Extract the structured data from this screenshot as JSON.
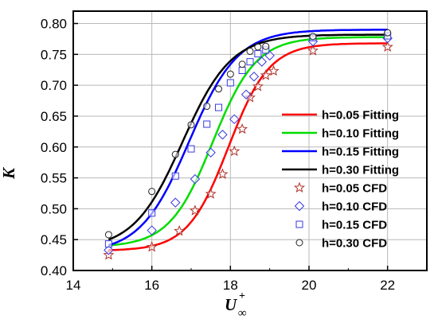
{
  "chart_data": {
    "type": "line",
    "title": "",
    "xlabel": "U",
    "xlabel_superscript": "+",
    "xlabel_subscript": "∞",
    "ylabel": "K",
    "xlim": [
      14,
      23
    ],
    "ylim": [
      0.4,
      0.82
    ],
    "xticks": [
      14,
      16,
      18,
      20,
      22
    ],
    "xtick_labels": [
      "14",
      "16",
      "18",
      "20",
      "22"
    ],
    "yticks": [
      0.4,
      0.45,
      0.5,
      0.55,
      0.6,
      0.65,
      0.7,
      0.75,
      0.8
    ],
    "ytick_labels": [
      "0.40",
      "0.45",
      "0.50",
      "0.55",
      "0.60",
      "0.65",
      "0.70",
      "0.75",
      "0.80"
    ],
    "grid": true,
    "legend_position": "right",
    "colors": {
      "h005": "#ff0000",
      "h010": "#00dd00",
      "h015": "#0000ff",
      "h030": "#000000",
      "cfd005": "#b03028",
      "cfd010": "#3a3ae0",
      "cfd015": "#3a3ae0",
      "cfd030": "#222222",
      "grid": "#b8b8b8"
    },
    "fit_series": [
      {
        "name": "h=0.05 Fitting",
        "color": "#ff0000",
        "params": {
          "A1": 0.432,
          "A2": 0.768,
          "x0": 17.95,
          "dx": 0.52
        }
      },
      {
        "name": "h=0.10 Fitting",
        "color": "#00dd00",
        "params": {
          "A1": 0.438,
          "A2": 0.778,
          "x0": 17.55,
          "dx": 0.55
        }
      },
      {
        "name": "h=0.15 Fitting",
        "color": "#0000ff",
        "params": {
          "A1": 0.428,
          "A2": 0.79,
          "x0": 16.95,
          "dx": 0.62
        }
      },
      {
        "name": "h=0.30 Fitting",
        "color": "#000000",
        "params": {
          "A1": 0.434,
          "A2": 0.782,
          "x0": 16.78,
          "dx": 0.62
        }
      }
    ],
    "cfd_series": [
      {
        "name": "h=0.05 CFD",
        "marker": "star",
        "color": "#b03028",
        "x": [
          14.9,
          16.0,
          16.7,
          17.1,
          17.5,
          17.8,
          18.1,
          18.3,
          18.5,
          18.7,
          18.9,
          19.1,
          20.1,
          22.0
        ],
        "y": [
          0.425,
          0.438,
          0.464,
          0.497,
          0.524,
          0.556,
          0.593,
          0.629,
          0.68,
          0.698,
          0.716,
          0.723,
          0.756,
          0.762
        ]
      },
      {
        "name": "h=0.10 CFD",
        "marker": "diamond",
        "color": "#3a3ae0",
        "x": [
          14.9,
          16.0,
          16.6,
          17.1,
          17.5,
          17.8,
          18.1,
          18.4,
          18.6,
          18.8,
          19.0,
          20.1,
          22.0
        ],
        "y": [
          0.433,
          0.465,
          0.51,
          0.548,
          0.591,
          0.62,
          0.645,
          0.685,
          0.714,
          0.738,
          0.748,
          0.771,
          0.776
        ]
      },
      {
        "name": "h=0.15 CFD",
        "marker": "square",
        "color": "#3a3ae0",
        "x": [
          14.9,
          16.0,
          16.6,
          17.0,
          17.4,
          17.7,
          18.0,
          18.3,
          18.5,
          18.7,
          18.9,
          20.1,
          22.0
        ],
        "y": [
          0.443,
          0.493,
          0.553,
          0.597,
          0.637,
          0.664,
          0.704,
          0.724,
          0.738,
          0.751,
          0.757,
          0.777,
          0.78
        ]
      },
      {
        "name": "h=0.30 CFD",
        "marker": "circle",
        "color": "#222222",
        "x": [
          14.9,
          16.0,
          16.6,
          17.0,
          17.4,
          17.7,
          18.0,
          18.3,
          18.5,
          18.7,
          18.9,
          20.1,
          22.0
        ],
        "y": [
          0.458,
          0.528,
          0.588,
          0.636,
          0.666,
          0.694,
          0.718,
          0.734,
          0.755,
          0.762,
          0.763,
          0.779,
          0.785
        ]
      }
    ]
  }
}
